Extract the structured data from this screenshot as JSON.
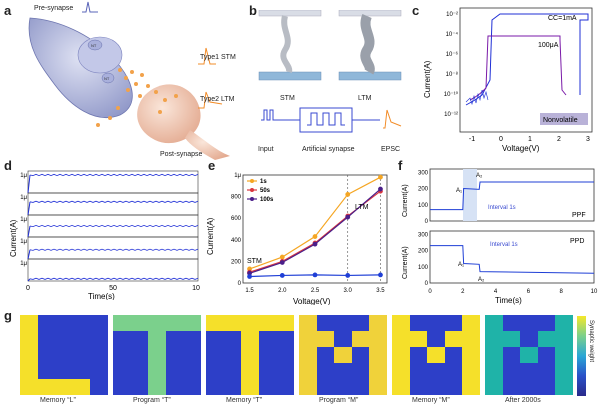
{
  "panels": {
    "a": {
      "label": "a",
      "pre_synapse": "Pre-synapse",
      "post_synapse": "Post-synapse",
      "type1": "Type1  STM",
      "type2": "Type2  LTM",
      "vesicle_label": "NT"
    },
    "b": {
      "label": "b",
      "stm": "STM",
      "ltm": "LTM",
      "input": "Input",
      "artificial": "Artificial synapse",
      "epsc": "EPSC"
    },
    "c": {
      "label": "c",
      "cc": "CC=1mA",
      "cc2": "100μA",
      "badge": "Nonvolatile",
      "xlabel": "Voltage(V)",
      "ylabel": "Current(A)",
      "xticks": [
        "-1",
        "0",
        "1",
        "2",
        "3"
      ],
      "yticks": [
        "10⁻²",
        "10⁻⁴",
        "10⁻⁶",
        "10⁻⁸",
        "10⁻¹⁰",
        "10⁻¹²"
      ]
    },
    "d": {
      "label": "d",
      "xlabel": "Time(s)",
      "ylabel": "Current(A)",
      "xticks": [
        "0",
        "50",
        "100"
      ],
      "row_tick": "1μ",
      "row_zero": "0"
    },
    "e": {
      "label": "e",
      "xlabel": "Voltage(V)",
      "ylabel": "Current(A)",
      "stm": "STM",
      "ltm": "LTM",
      "yticks": [
        "0",
        "200",
        "400",
        "600",
        "800",
        "1μ"
      ],
      "xticks": [
        "1.5",
        "2.0",
        "2.5",
        "3.0",
        "3.5"
      ],
      "legend": [
        "1s",
        "50s",
        "100s"
      ]
    },
    "f": {
      "label": "f",
      "xlabel": "Time(s)",
      "ylabel": "Current(A)",
      "interval": "Interval 1s",
      "ppf": "PPF",
      "ppd": "PPD",
      "a1": "A₁",
      "a2": "A₂",
      "top_yticks": [
        "0",
        "100",
        "200",
        "300"
      ],
      "bot_yticks": [
        "0",
        "100",
        "200",
        "300"
      ],
      "xticks": [
        "0",
        "2",
        "4",
        "6",
        "8",
        "10"
      ]
    },
    "g": {
      "label": "g",
      "captions": [
        "Memory “L”",
        "Program “T”",
        "Memory “T”",
        "Program “M”",
        "Memory “M”",
        "After 2000s"
      ],
      "colorbar_label": "Synaptic weight"
    }
  },
  "chart_data": [
    {
      "panel": "e",
      "type": "line",
      "x": [
        1.5,
        2.0,
        2.5,
        3.0,
        3.5
      ],
      "series": [
        {
          "name": "1s",
          "values": [
            130,
            240,
            430,
            820,
            980
          ]
        },
        {
          "name": "50s",
          "values": [
            100,
            200,
            370,
            620,
            850
          ]
        },
        {
          "name": "100s",
          "values": [
            90,
            190,
            360,
            610,
            870
          ]
        },
        {
          "values": [
            60,
            70,
            75,
            70,
            75
          ]
        }
      ],
      "xlabel": "Voltage(V)",
      "ylabel": "Current(A)",
      "ylim": [
        0,
        1000
      ],
      "xlim": [
        1.4,
        3.6
      ]
    },
    {
      "panel": "d",
      "type": "line",
      "rows": [
        0.82,
        0.6,
        0.5,
        0.42,
        0.1
      ],
      "xlim": [
        0,
        100
      ]
    },
    {
      "panel": "f-top",
      "type": "line",
      "x": [
        0,
        2,
        2.05,
        3,
        3.05,
        10
      ],
      "values": [
        70,
        70,
        200,
        195,
        240,
        240
      ],
      "ylim": [
        0,
        320
      ]
    },
    {
      "panel": "f-bottom",
      "type": "line",
      "x": [
        0,
        2,
        2.05,
        3,
        3.05,
        10
      ],
      "values": [
        230,
        230,
        120,
        115,
        70,
        60
      ],
      "ylim": [
        0,
        320
      ]
    }
  ],
  "colors": {
    "orange": "#f5a623",
    "red": "#d9363e",
    "purple": "#4b1f8a",
    "blue": "#1f3fd6",
    "membrane": "#9aa3cf",
    "cell": "#f0c7b0"
  }
}
